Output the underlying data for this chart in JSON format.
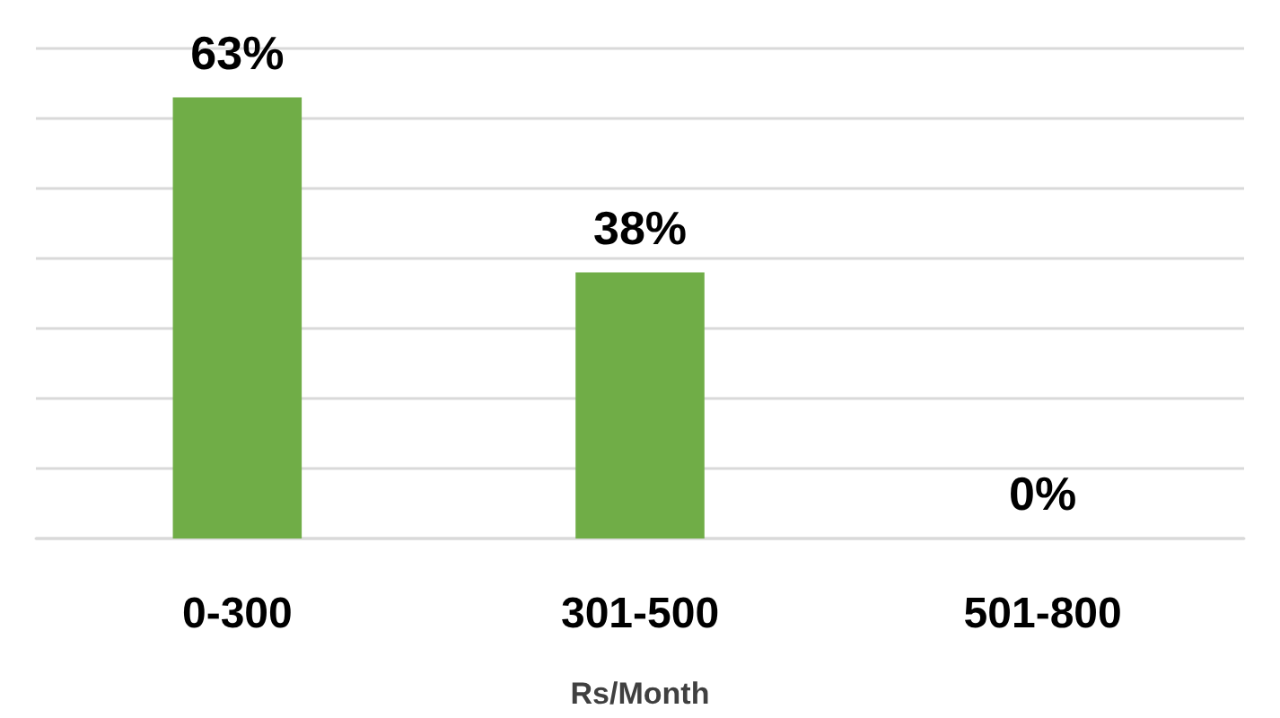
{
  "chart_data": {
    "type": "bar",
    "xlabel": "Rs/Month",
    "categories": [
      "0-300",
      "301-500",
      "501-800"
    ],
    "values": [
      63,
      38,
      0
    ],
    "value_labels": [
      "63%",
      "38%",
      "0%"
    ],
    "color": "#70ad47",
    "ylim": [
      0,
      70
    ],
    "yticks": [
      0,
      10,
      20,
      30,
      40,
      50,
      60,
      70
    ],
    "grid": "y",
    "tick_labels": "x"
  }
}
